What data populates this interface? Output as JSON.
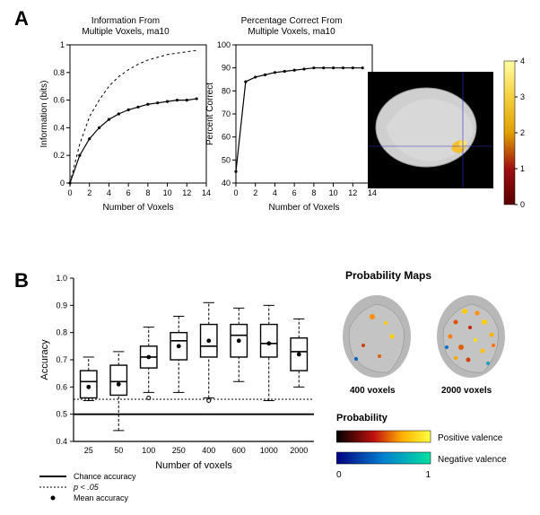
{
  "panelA": {
    "label": "A",
    "chart1": {
      "title": "Information From\nMultiple Voxels, ma10",
      "xlabel": "Number of Voxels",
      "ylabel": "Information (bits)",
      "xlim": [
        0,
        14
      ],
      "ylim": [
        0,
        1
      ],
      "xticks": [
        0,
        2,
        4,
        6,
        8,
        10,
        12,
        14
      ],
      "yticks": [
        0,
        0.2,
        0.4,
        0.6,
        0.8,
        1
      ],
      "series_solid": {
        "x": [
          0,
          1,
          2,
          3,
          4,
          5,
          6,
          7,
          8,
          9,
          10,
          11,
          12,
          13
        ],
        "y": [
          0,
          0.2,
          0.32,
          0.4,
          0.46,
          0.5,
          0.53,
          0.55,
          0.57,
          0.58,
          0.59,
          0.6,
          0.6,
          0.61
        ],
        "color": "#000000",
        "width": 1.2,
        "markers": true
      },
      "series_dashed": {
        "x": [
          0,
          1,
          2,
          3,
          4,
          5,
          6,
          7,
          8,
          9,
          10,
          11,
          12,
          13
        ],
        "y": [
          0,
          0.28,
          0.48,
          0.6,
          0.7,
          0.77,
          0.82,
          0.86,
          0.89,
          0.91,
          0.93,
          0.94,
          0.95,
          0.96
        ],
        "color": "#000000",
        "width": 1,
        "dash": "3,3"
      },
      "background": "#ffffff",
      "grid": false
    },
    "chart2": {
      "title": "Percentage Correct From\nMultiple Voxels, ma10",
      "xlabel": "Number of Voxels",
      "ylabel": "Percent Correct",
      "xlim": [
        0,
        14
      ],
      "ylim": [
        40,
        100
      ],
      "xticks": [
        0,
        2,
        4,
        6,
        8,
        10,
        12,
        14
      ],
      "yticks": [
        40,
        50,
        60,
        70,
        80,
        90,
        100
      ],
      "series": {
        "x": [
          0,
          1,
          2,
          3,
          4,
          5,
          6,
          7,
          8,
          9,
          10,
          11,
          12,
          13
        ],
        "y": [
          45,
          84,
          86,
          87,
          88,
          88.5,
          89,
          89.5,
          90,
          90,
          90,
          90,
          90,
          90
        ],
        "color": "#000000",
        "width": 1.2,
        "markers": true
      },
      "background": "#ffffff"
    },
    "colorbar": {
      "ticks": [
        "0",
        "1",
        "2",
        "3",
        "4"
      ],
      "stops": [
        {
          "p": 0,
          "c": "#5a0000"
        },
        {
          "p": 0.25,
          "c": "#a01010"
        },
        {
          "p": 0.5,
          "c": "#e0a000"
        },
        {
          "p": 0.75,
          "c": "#f5d040"
        },
        {
          "p": 1,
          "c": "#ffffa0"
        }
      ],
      "height": 160,
      "width": 12
    }
  },
  "panelB": {
    "label": "B",
    "boxchart": {
      "xlabel": "Number of voxels",
      "ylabel": "Accuracy",
      "ylim": [
        0.4,
        1.0
      ],
      "yticks": [
        0.4,
        0.5,
        0.6,
        0.7,
        0.8,
        0.9,
        1.0
      ],
      "categories": [
        "25",
        "50",
        "100",
        "250",
        "400",
        "600",
        "1000",
        "2000"
      ],
      "boxes": [
        {
          "q1": 0.56,
          "med": 0.62,
          "q3": 0.66,
          "wlo": 0.55,
          "whi": 0.71,
          "mean": 0.6
        },
        {
          "q1": 0.57,
          "med": 0.62,
          "q3": 0.68,
          "wlo": 0.44,
          "whi": 0.73,
          "mean": 0.61
        },
        {
          "q1": 0.67,
          "med": 0.71,
          "q3": 0.75,
          "wlo": 0.58,
          "whi": 0.82,
          "mean": 0.71,
          "outliers": [
            0.56
          ]
        },
        {
          "q1": 0.7,
          "med": 0.77,
          "q3": 0.8,
          "wlo": 0.58,
          "whi": 0.86,
          "mean": 0.75
        },
        {
          "q1": 0.71,
          "med": 0.75,
          "q3": 0.83,
          "wlo": 0.56,
          "whi": 0.91,
          "mean": 0.77,
          "outliers": [
            0.55
          ]
        },
        {
          "q1": 0.71,
          "med": 0.79,
          "q3": 0.83,
          "wlo": 0.62,
          "whi": 0.89,
          "mean": 0.77
        },
        {
          "q1": 0.71,
          "med": 0.76,
          "q3": 0.83,
          "wlo": 0.55,
          "whi": 0.9,
          "mean": 0.76
        },
        {
          "q1": 0.66,
          "med": 0.73,
          "q3": 0.78,
          "wlo": 0.6,
          "whi": 0.85,
          "mean": 0.72
        }
      ],
      "chance_line": 0.5,
      "p05_line": 0.555,
      "box_color": "#000000",
      "box_lw": 1.4,
      "background": "#ffffff"
    },
    "legend": {
      "chance": "Chance accuracy",
      "p05": "p < .05",
      "mean": "Mean accuracy"
    },
    "probmaps": {
      "title": "Probability Maps",
      "labels": [
        "400 voxels",
        "2000 voxels"
      ],
      "prob_label": "Probability",
      "pos_label": "Positive valence",
      "neg_label": "Negative valence",
      "scale_ticks": [
        "0",
        "1"
      ],
      "pos_stops": [
        {
          "p": 0,
          "c": "#000000"
        },
        {
          "p": 0.4,
          "c": "#c01010"
        },
        {
          "p": 0.7,
          "c": "#ffb000"
        },
        {
          "p": 1,
          "c": "#ffff40"
        }
      ],
      "neg_stops": [
        {
          "p": 0,
          "c": "#000080"
        },
        {
          "p": 0.5,
          "c": "#0080d0"
        },
        {
          "p": 1,
          "c": "#00e0a0"
        }
      ]
    }
  }
}
